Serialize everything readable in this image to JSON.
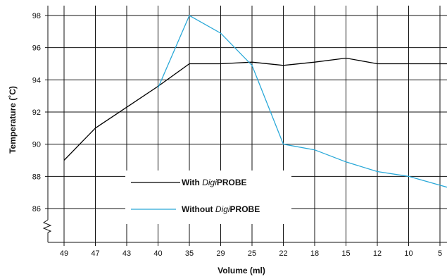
{
  "chart_data": {
    "type": "line",
    "xlabel": "Volume (ml)",
    "ylabel": "Temperature (˚C)",
    "categories": [
      "49",
      "47",
      "43",
      "40",
      "35",
      "29",
      "25",
      "22",
      "18",
      "15",
      "12",
      "10",
      "5"
    ],
    "ylim": [
      84,
      98
    ],
    "yticks": [
      86,
      88,
      90,
      92,
      94,
      96,
      98
    ],
    "grid": true,
    "legend_position": "center-left",
    "axis_break": "y-axis below 86",
    "series": [
      {
        "name": "With DigiPROBE",
        "name_prefix": "With ",
        "name_italic": "Digi",
        "name_bold": "PROBE",
        "color": "#000000",
        "values": [
          89.0,
          91.0,
          92.3,
          93.6,
          95.0,
          95.0,
          95.1,
          94.9,
          95.1,
          95.35,
          95.0,
          95.0,
          95.0
        ]
      },
      {
        "name": "Without DigiPROBE",
        "name_prefix": "Without ",
        "name_italic": "Digi",
        "name_bold": "PROBE",
        "color": "#29a8d8",
        "values": [
          null,
          null,
          null,
          93.5,
          98.0,
          96.9,
          94.9,
          90.0,
          89.65,
          88.9,
          88.3,
          88.0,
          87.45
        ]
      }
    ]
  }
}
